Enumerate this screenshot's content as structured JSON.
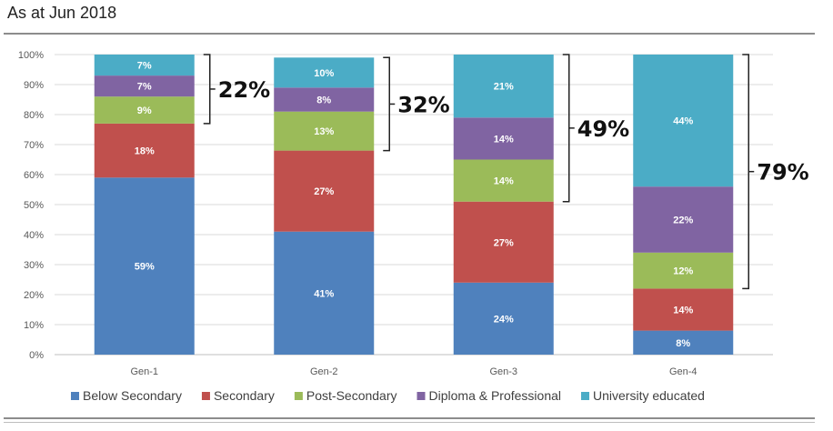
{
  "subtitle": "As at Jun 2018",
  "chart_data": {
    "type": "bar",
    "stacked": true,
    "categories": [
      "Gen-1",
      "Gen-2",
      "Gen-3",
      "Gen-4"
    ],
    "y_ticks": [
      "0%",
      "10%",
      "20%",
      "30%",
      "40%",
      "50%",
      "60%",
      "70%",
      "80%",
      "90%",
      "100%"
    ],
    "ylim": [
      0,
      100
    ],
    "grid": true,
    "legend_position": "bottom",
    "series": [
      {
        "name": "Below Secondary",
        "color": "#4f81bd",
        "values": [
          59,
          41,
          24,
          8
        ],
        "labels": [
          "59%",
          "41%",
          "24%",
          "8%"
        ]
      },
      {
        "name": "Secondary",
        "color": "#c0504d",
        "values": [
          18,
          27,
          27,
          14
        ],
        "labels": [
          "18%",
          "27%",
          "27%",
          "14%"
        ]
      },
      {
        "name": "Post-Secondary",
        "color": "#9bbb59",
        "values": [
          9,
          13,
          14,
          12
        ],
        "labels": [
          "9%",
          "13%",
          "14%",
          "12%"
        ]
      },
      {
        "name": "Diploma & Professional",
        "color": "#8064a2",
        "values": [
          7,
          8,
          14,
          22
        ],
        "labels": [
          "7%",
          "8%",
          "14%",
          "22%"
        ]
      },
      {
        "name": "University educated",
        "color": "#4bacc6",
        "values": [
          7,
          10,
          21,
          44
        ],
        "labels": [
          "7%",
          "10%",
          "21%",
          "44%"
        ]
      }
    ],
    "annotations": [
      {
        "category": "Gen-1",
        "label": "22%"
      },
      {
        "category": "Gen-2",
        "label": "32%"
      },
      {
        "category": "Gen-3",
        "label": "49%"
      },
      {
        "category": "Gen-4",
        "label": "79%"
      }
    ]
  }
}
